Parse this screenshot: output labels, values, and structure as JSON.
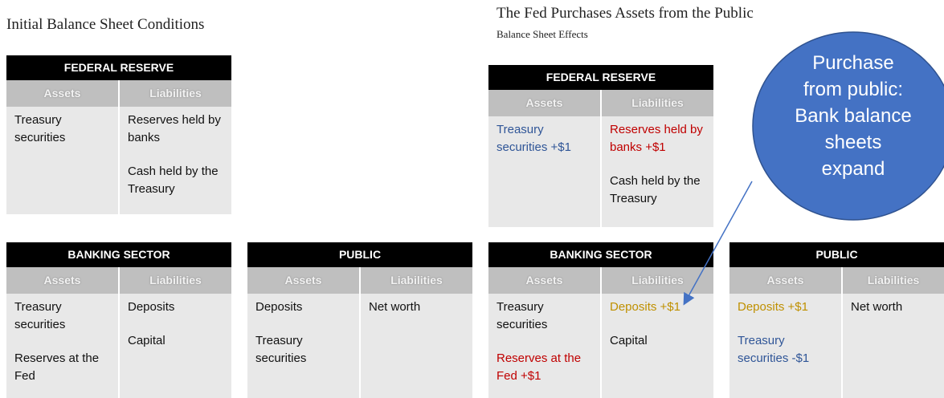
{
  "left": {
    "title": "Initial Balance Sheet Conditions",
    "tables": [
      {
        "title": "FEDERAL RESERVE",
        "headers": [
          "Assets",
          "Liabilities"
        ],
        "assets": [
          "Treasury securities"
        ],
        "liabilities": [
          "Reserves held by banks",
          "Cash held by the Treasury"
        ]
      },
      {
        "title": "BANKING SECTOR",
        "headers": [
          "Assets",
          "Liabilities"
        ],
        "assets": [
          "Treasury securities",
          "Reserves at the Fed"
        ],
        "liabilities": [
          "Deposits",
          "Capital"
        ]
      },
      {
        "title": "PUBLIC",
        "headers": [
          "Assets",
          "Liabilities"
        ],
        "assets": [
          "Deposits",
          "Treasury securities"
        ],
        "liabilities": [
          "Net worth"
        ]
      }
    ]
  },
  "right": {
    "title": "The Fed Purchases Assets from the Public",
    "subtitle": "Balance Sheet Effects",
    "tables": [
      {
        "title": "FEDERAL RESERVE",
        "headers": [
          "Assets",
          "Liabilities"
        ],
        "assets": [
          "Treasury securities +$1"
        ],
        "liabilities": [
          "Reserves held by banks +$1",
          "Cash held by the Treasury"
        ]
      },
      {
        "title": "BANKING SECTOR",
        "headers": [
          "Assets",
          "Liabilities"
        ],
        "assets": [
          "Treasury securities",
          "Reserves at the Fed +$1"
        ],
        "liabilities": [
          "Deposits +$1",
          "Capital"
        ]
      },
      {
        "title": "PUBLIC",
        "headers": [
          "Assets",
          "Liabilities"
        ],
        "assets": [
          "Deposits +$1",
          "Treasury securities -$1"
        ],
        "liabilities": [
          "Net worth"
        ]
      }
    ],
    "callout": [
      "Purchase",
      "from public:",
      "Bank balance",
      "sheets",
      "expand"
    ]
  }
}
